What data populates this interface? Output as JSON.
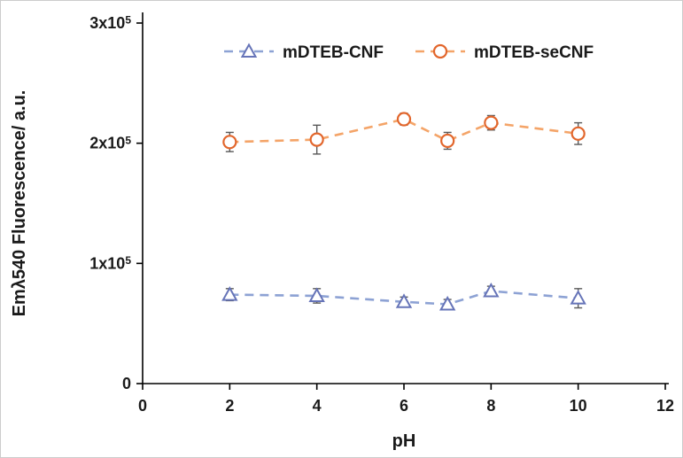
{
  "figure": {
    "background": "#ffffff",
    "border_color": "#cccccc"
  },
  "chart_data": {
    "type": "line",
    "title": "",
    "xlabel": "pH",
    "ylabel": "Emλ540 Fluorescence/ a.u.",
    "xlim": [
      0,
      12
    ],
    "ylim": [
      0,
      300000
    ],
    "grid": false,
    "legend_position": "top-center-inside",
    "x_ticks": [
      {
        "v": 0,
        "label": "0"
      },
      {
        "v": 2,
        "label": "2"
      },
      {
        "v": 4,
        "label": "4"
      },
      {
        "v": 6,
        "label": "6"
      },
      {
        "v": 8,
        "label": "8"
      },
      {
        "v": 10,
        "label": "10"
      },
      {
        "v": 12,
        "label": "12"
      }
    ],
    "y_ticks": [
      {
        "v": 0,
        "label": "0"
      },
      {
        "v": 100000,
        "label": "1x10^5"
      },
      {
        "v": 200000,
        "label": "2x10^5"
      },
      {
        "v": 300000,
        "label": "3x10^5"
      }
    ],
    "x": [
      2,
      4,
      6,
      7,
      8,
      10
    ],
    "series": [
      {
        "name": "mDTEB-CNF",
        "marker": "triangle",
        "line_style": "dashed",
        "line_color": "#8DA2D4",
        "marker_color": "#6674B8",
        "values": [
          74000,
          73000,
          68000,
          66000,
          77000,
          71000
        ],
        "yerr": [
          5000,
          6000,
          4000,
          4000,
          4000,
          8000
        ]
      },
      {
        "name": "mDTEB-seCNF",
        "marker": "circle",
        "line_style": "dashed",
        "line_color": "#F4A468",
        "marker_color": "#E2662C",
        "values": [
          201000,
          203000,
          220000,
          202000,
          217000,
          208000
        ],
        "yerr": [
          8000,
          12000,
          5000,
          7000,
          6000,
          9000
        ]
      }
    ],
    "error_bar_color": "#595959",
    "axis_color": "#000000",
    "text_color": "#1a1a1a"
  }
}
